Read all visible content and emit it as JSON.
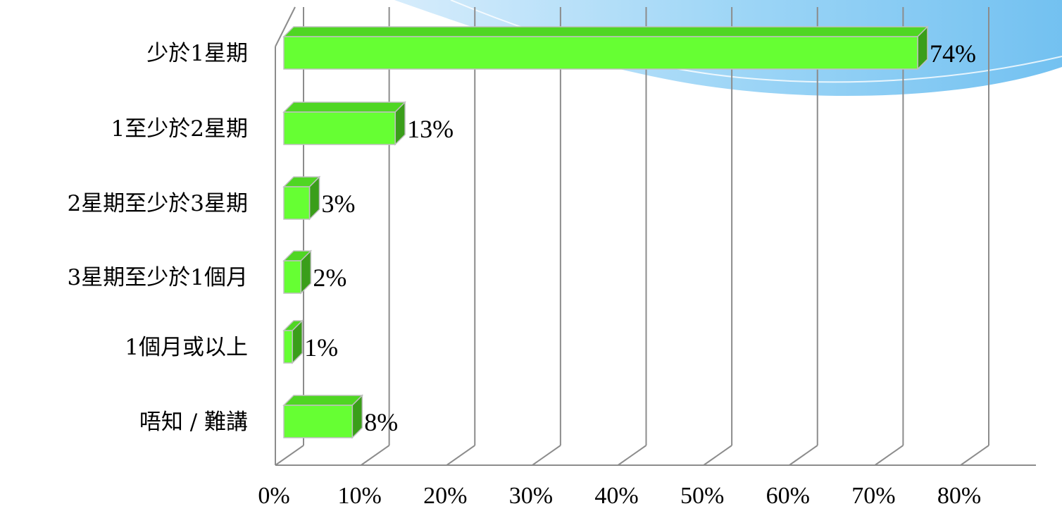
{
  "colors": {
    "bar_front": "#66ff33",
    "bar_top": "#4fd623",
    "bar_side": "#3a9e1a",
    "bar_edge": "#bfbfbf",
    "gridline": "#8c8c8c",
    "swoosh_light": "#cfe9fb",
    "swoosh_mid": "#8ecff5",
    "swoosh_dark": "#5ab6ee"
  },
  "chart_data": {
    "type": "bar",
    "orientation": "horizontal",
    "three_d": true,
    "categories": [
      "少於1星期",
      "1至少於2星期",
      "2星期至少於3星期",
      "3星期至少於1個月",
      "1個月或以上",
      "唔知 / 難講"
    ],
    "values": [
      74,
      13,
      3,
      2,
      1,
      8
    ],
    "data_labels": [
      "74%",
      "13%",
      "3%",
      "2%",
      "1%",
      "8%"
    ],
    "x_ticks": [
      "0%",
      "10%",
      "20%",
      "30%",
      "40%",
      "50%",
      "60%",
      "70%",
      "80%"
    ],
    "xlim": [
      0,
      80
    ],
    "unit": "%",
    "grid": true,
    "legend": "none"
  }
}
